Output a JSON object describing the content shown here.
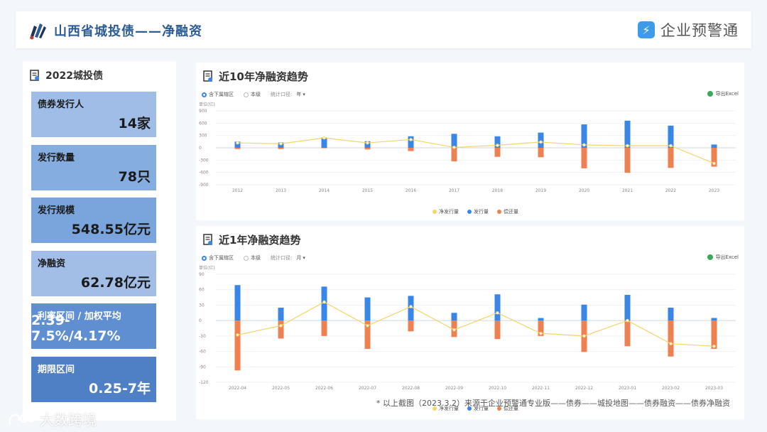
{
  "header": {
    "title": "山西省城投债——净融资",
    "brand_name": "企业预警通",
    "brand_icon": "lightning-icon"
  },
  "left_panel": {
    "title": "2022城投债",
    "stats": [
      {
        "label": "债券发行人",
        "value": "14家",
        "color": "#9fbde7",
        "dark": false
      },
      {
        "label": "发行数量",
        "value": "78只",
        "color": "#86addf",
        "dark": false
      },
      {
        "label": "发行规模",
        "value": "548.55亿元",
        "color": "#7aa5dc",
        "dark": false
      },
      {
        "label": "净融资",
        "value": "62.78亿元",
        "color": "#a2bee6",
        "dark": false
      },
      {
        "label": "利率区间 / 加权平均",
        "value": "2.39-7.5%/4.17%",
        "color": "#5f8fd0",
        "dark": true
      },
      {
        "label": "期限区间",
        "value": "0.25-7年",
        "color": "#4f7fc4",
        "dark": true
      }
    ]
  },
  "charts": [
    {
      "title": "近10年净融资趋势",
      "controls": {
        "option1": "含下属辖区",
        "option2": "本级",
        "stat_label": "统计口径:",
        "stat_value": "年"
      },
      "export_label": "导出Excel",
      "unit_label": "单位(亿)",
      "chart_data": {
        "type": "bar",
        "categories": [
          "2012",
          "2013",
          "2014",
          "2015",
          "2016",
          "2017",
          "2018",
          "2019",
          "2020",
          "2021",
          "2022",
          "2023"
        ],
        "ylim": [
          -900,
          900
        ],
        "yticks": [
          900,
          600,
          300,
          0,
          -300,
          -600,
          -900
        ],
        "series": [
          {
            "name": "净发行量",
            "type": "line",
            "color": "#f5d46a",
            "values": [
              120,
              100,
              240,
              120,
              200,
              10,
              60,
              140,
              70,
              50,
              50,
              -380
            ]
          },
          {
            "name": "发行量",
            "type": "bar",
            "color": "#3a86e6",
            "values": [
              150,
              130,
              250,
              160,
              280,
              340,
              280,
              370,
              570,
              660,
              540,
              80
            ]
          },
          {
            "name": "偿还量",
            "type": "bar",
            "color": "#ee8152",
            "values": [
              -30,
              -30,
              -10,
              -40,
              -80,
              -330,
              -220,
              -230,
              -500,
              -610,
              -490,
              -460
            ]
          }
        ],
        "grid": true,
        "legend_position": "bottom"
      }
    },
    {
      "title": "近1年净融资趋势",
      "controls": {
        "option1": "含下属辖区",
        "option2": "本级",
        "stat_label": "统计口径:",
        "stat_value": "月"
      },
      "export_label": "导出Excel",
      "unit_label": "单位(亿)",
      "chart_data": {
        "type": "bar",
        "categories": [
          "2022-04",
          "2022-05",
          "2022-06",
          "2022-07",
          "2022-08",
          "2022-09",
          "2022-10",
          "2022-11",
          "2022-12",
          "2023-01",
          "2023-02",
          "2023-03"
        ],
        "ylim": [
          -120,
          90
        ],
        "yticks": [
          90,
          60,
          30,
          0,
          -30,
          -60,
          -90,
          -120
        ],
        "series": [
          {
            "name": "净发行量",
            "type": "line",
            "color": "#f5d46a",
            "values": [
              -28,
              -10,
              36,
              -10,
              27,
              -18,
              15,
              -25,
              -30,
              0,
              -45,
              -50
            ]
          },
          {
            "name": "发行量",
            "type": "bar",
            "color": "#3a86e6",
            "values": [
              69,
              25,
              66,
              45,
              48,
              15,
              51,
              5,
              31,
              50,
              25,
              5
            ]
          },
          {
            "name": "偿还量",
            "type": "bar",
            "color": "#ee8152",
            "values": [
              -97,
              -35,
              -30,
              -55,
              -21,
              -32,
              -36,
              -30,
              -61,
              -50,
              -70,
              -55
            ]
          }
        ],
        "grid": true,
        "legend_position": "bottom"
      }
    }
  ],
  "footnote": "* 以上截图（2023.3.2）来源于企业预警通专业版——债券——城投地图——债券融资——债券净融资",
  "watermark": "大数跨境"
}
